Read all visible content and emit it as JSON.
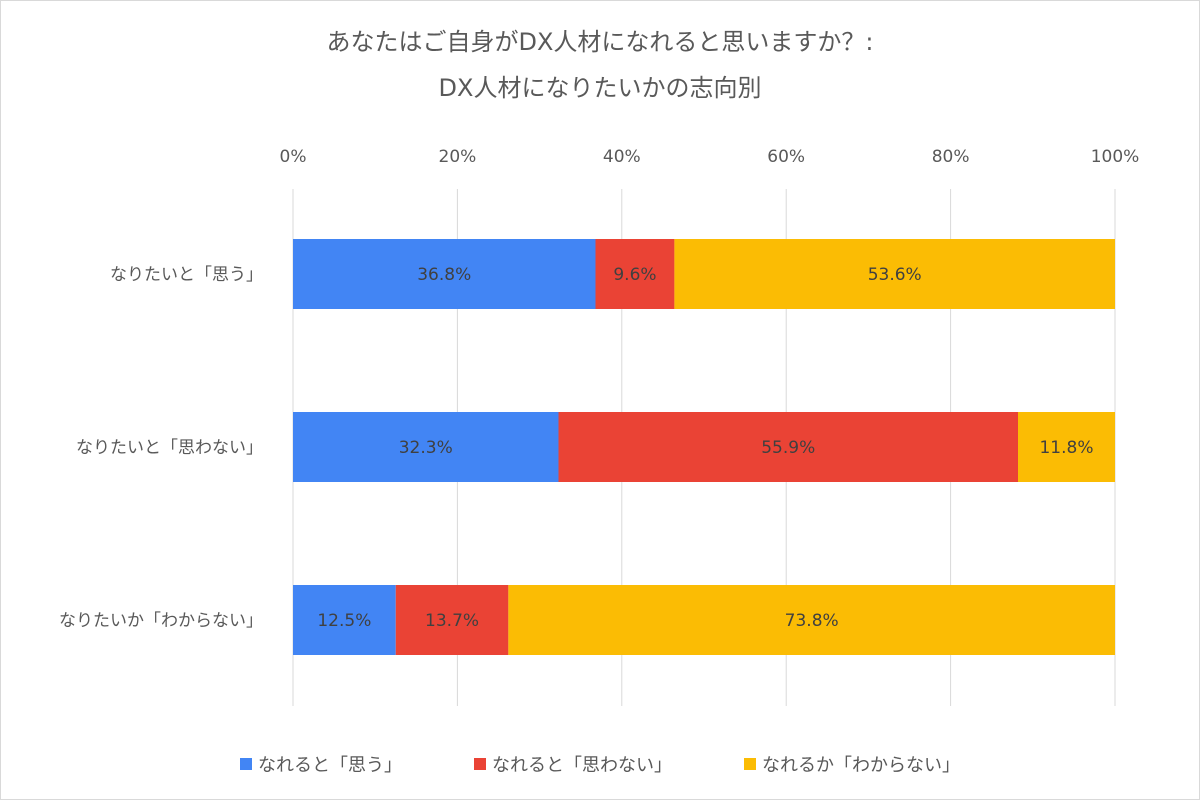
{
  "chart_data": {
    "type": "bar",
    "orientation": "horizontal",
    "stacked": "percent",
    "title_lines": [
      "あなたはご自身がDX人材になれると思いますか？:",
      "DX人材になりたいかの志向別"
    ],
    "categories": [
      "なりたいと「思う」",
      "なりたいと「思わない」",
      "なりたいか「わからない」"
    ],
    "series": [
      {
        "name": "なれると「思う」",
        "color": "#4285f4",
        "values": [
          36.8,
          32.3,
          12.5
        ],
        "labels": [
          "36.8%",
          "32.3%",
          "12.5%"
        ]
      },
      {
        "name": "なれると「思わない」",
        "color": "#ea4335",
        "values": [
          9.6,
          55.9,
          13.7
        ],
        "labels": [
          "9.6%",
          "55.9%",
          "13.7%"
        ]
      },
      {
        "name": "なれるか「わからない」",
        "color": "#fbbc04",
        "values": [
          53.6,
          11.8,
          73.8
        ],
        "labels": [
          "53.6%",
          "11.8%",
          "73.8%"
        ]
      }
    ],
    "xlim": [
      0,
      100
    ],
    "x_ticks": [
      0,
      20,
      40,
      60,
      80,
      100
    ],
    "x_tick_labels": [
      "0%",
      "20%",
      "40%",
      "60%",
      "80%",
      "100%"
    ],
    "x_axis_position": "top",
    "grid": true,
    "grid_color": "#d9d9d9",
    "legend_position": "bottom"
  }
}
